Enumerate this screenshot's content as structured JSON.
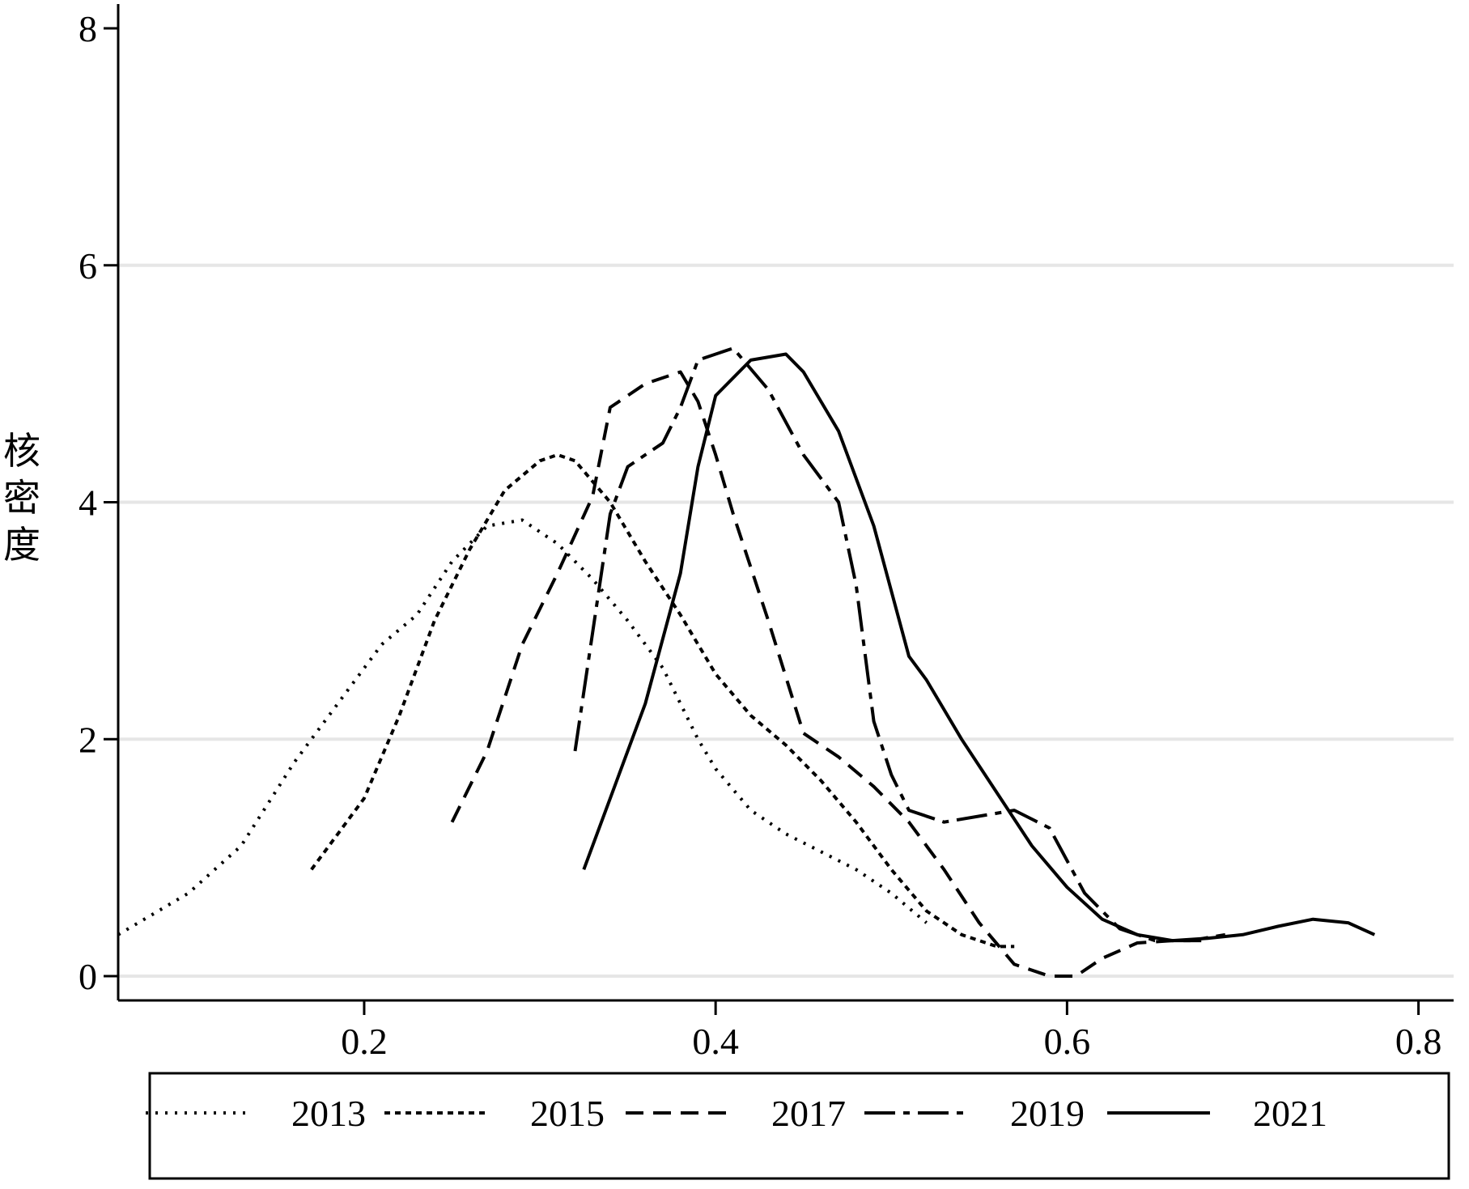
{
  "chart_data": {
    "type": "line",
    "title": "",
    "xlabel": "",
    "ylabel": "核密度",
    "xlim": [
      0.06,
      0.82
    ],
    "ylim": [
      0,
      8
    ],
    "xticks": [
      0.2,
      0.4,
      0.6,
      0.8
    ],
    "xtick_labels": [
      "0.2",
      "0.4",
      "0.6",
      "0.8"
    ],
    "yticks": [
      0,
      2,
      4,
      6,
      8
    ],
    "ytick_labels": [
      "0",
      "2",
      "4",
      "6",
      "8"
    ],
    "grid": true,
    "legend_position": "bottom",
    "series": [
      {
        "name": "2013",
        "dash": "dotted",
        "x": [
          0.06,
          0.1,
          0.13,
          0.16,
          0.19,
          0.21,
          0.23,
          0.25,
          0.27,
          0.29,
          0.31,
          0.33,
          0.35,
          0.37,
          0.38,
          0.39,
          0.4,
          0.42,
          0.44,
          0.46,
          0.48,
          0.5,
          0.52
        ],
        "y": [
          0.35,
          0.7,
          1.1,
          1.8,
          2.4,
          2.8,
          3.05,
          3.5,
          3.8,
          3.85,
          3.65,
          3.35,
          3.0,
          2.6,
          2.3,
          2.0,
          1.75,
          1.4,
          1.2,
          1.05,
          0.9,
          0.7,
          0.45
        ]
      },
      {
        "name": "2015",
        "dash": "short-dash",
        "x": [
          0.17,
          0.2,
          0.22,
          0.24,
          0.26,
          0.28,
          0.3,
          0.31,
          0.32,
          0.34,
          0.36,
          0.38,
          0.4,
          0.42,
          0.44,
          0.46,
          0.48,
          0.5,
          0.52,
          0.54,
          0.56,
          0.57
        ],
        "y": [
          0.9,
          1.5,
          2.2,
          3.0,
          3.6,
          4.1,
          4.35,
          4.4,
          4.35,
          4.0,
          3.5,
          3.05,
          2.55,
          2.2,
          1.95,
          1.65,
          1.3,
          0.9,
          0.55,
          0.35,
          0.25,
          0.25
        ]
      },
      {
        "name": "2017",
        "dash": "dash",
        "x": [
          0.25,
          0.27,
          0.29,
          0.31,
          0.33,
          0.34,
          0.36,
          0.38,
          0.39,
          0.4,
          0.41,
          0.43,
          0.45,
          0.47,
          0.49,
          0.51,
          0.53,
          0.55,
          0.57,
          0.59,
          0.605,
          0.62,
          0.64,
          0.66,
          0.68
        ],
        "y": [
          1.3,
          1.9,
          2.8,
          3.4,
          4.05,
          4.8,
          5.0,
          5.1,
          4.85,
          4.4,
          3.9,
          3.0,
          2.05,
          1.85,
          1.6,
          1.3,
          0.9,
          0.45,
          0.1,
          0.0,
          0.0,
          0.15,
          0.28,
          0.3,
          0.3
        ]
      },
      {
        "name": "2019",
        "dash": "long-dash",
        "x": [
          0.32,
          0.33,
          0.34,
          0.35,
          0.37,
          0.38,
          0.39,
          0.41,
          0.43,
          0.45,
          0.47,
          0.48,
          0.49,
          0.5,
          0.51,
          0.53,
          0.55,
          0.57,
          0.59,
          0.61,
          0.63,
          0.65,
          0.67,
          0.69
        ],
        "y": [
          1.9,
          2.9,
          3.9,
          4.3,
          4.5,
          4.8,
          5.2,
          5.3,
          4.95,
          4.4,
          4.0,
          3.3,
          2.15,
          1.7,
          1.4,
          1.3,
          1.35,
          1.4,
          1.25,
          0.7,
          0.4,
          0.3,
          0.3,
          0.35
        ]
      },
      {
        "name": "2021",
        "dash": "solid",
        "x": [
          0.325,
          0.34,
          0.36,
          0.38,
          0.39,
          0.4,
          0.42,
          0.44,
          0.45,
          0.47,
          0.49,
          0.51,
          0.52,
          0.54,
          0.56,
          0.58,
          0.6,
          0.62,
          0.64,
          0.66,
          0.68,
          0.7,
          0.72,
          0.74,
          0.76,
          0.775
        ],
        "y": [
          0.9,
          1.5,
          2.3,
          3.4,
          4.3,
          4.9,
          5.2,
          5.25,
          5.1,
          4.6,
          3.8,
          2.7,
          2.5,
          2.0,
          1.55,
          1.1,
          0.75,
          0.48,
          0.35,
          0.3,
          0.32,
          0.35,
          0.42,
          0.48,
          0.45,
          0.35
        ]
      }
    ]
  }
}
